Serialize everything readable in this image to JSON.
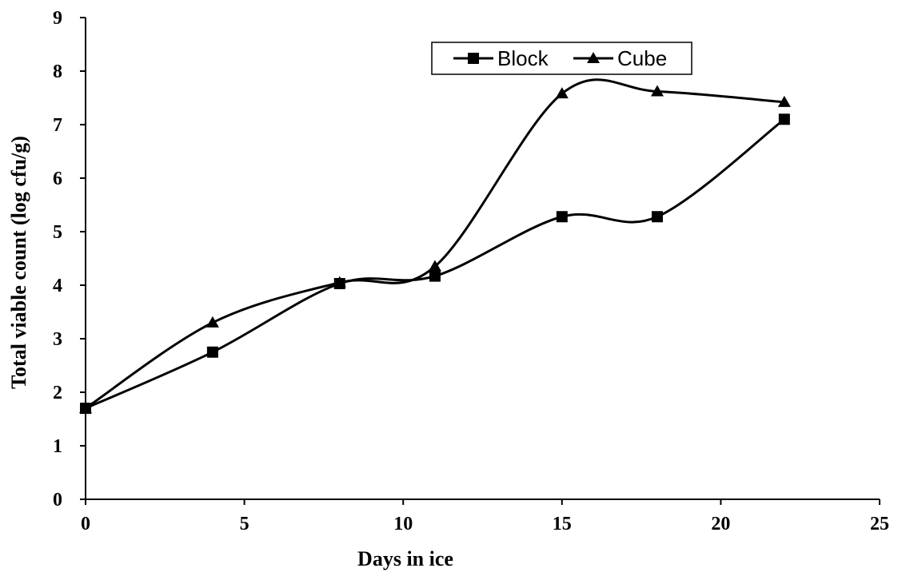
{
  "chart_data": {
    "type": "line",
    "xlabel": "Days in ice",
    "ylabel": "Total viable count (log cfu/g)",
    "xlim": [
      0,
      25
    ],
    "ylim": [
      0,
      9
    ],
    "xticks": [
      0,
      5,
      10,
      15,
      20,
      25
    ],
    "yticks": [
      0,
      1,
      2,
      3,
      4,
      5,
      6,
      7,
      8,
      9
    ],
    "grid": false,
    "smoothed": true,
    "legend": {
      "position": "top-right",
      "boxed": true
    },
    "series": [
      {
        "name": "Block",
        "marker": "square",
        "color": "#000000",
        "x": [
          0,
          4,
          8,
          11,
          15,
          18,
          22
        ],
        "y": [
          1.7,
          2.75,
          4.03,
          4.17,
          5.28,
          5.28,
          7.1
        ]
      },
      {
        "name": "Cube",
        "marker": "triangle",
        "color": "#000000",
        "x": [
          0,
          4,
          8,
          11,
          15,
          18,
          22
        ],
        "y": [
          1.7,
          3.3,
          4.05,
          4.35,
          7.58,
          7.62,
          7.42
        ]
      }
    ]
  }
}
